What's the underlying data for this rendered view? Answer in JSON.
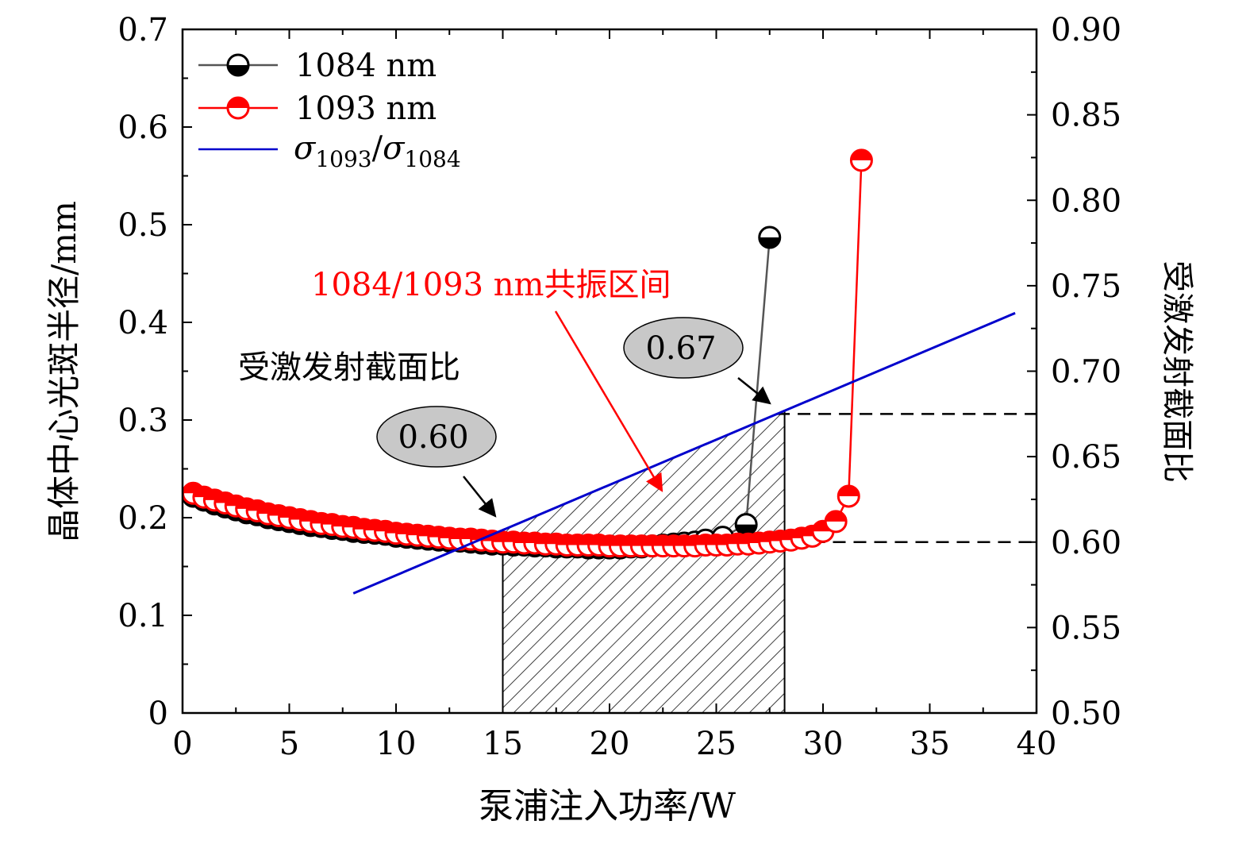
{
  "chart_data": {
    "type": "line",
    "xlabel": "泵浦注入功率/W",
    "ylabel_left": "晶体中心光斑半径/mm",
    "ylabel_right": "受激发射截面比",
    "xlim": [
      0,
      40
    ],
    "ylim_left": [
      0,
      0.7
    ],
    "ylim_right": [
      0.5,
      0.9
    ],
    "x_ticks": [
      "0",
      "5",
      "10",
      "15",
      "20",
      "25",
      "30",
      "35",
      "40"
    ],
    "y_left_ticks": [
      "0",
      "0.1",
      "0.2",
      "0.3",
      "0.4",
      "0.5",
      "0.6",
      "0.7"
    ],
    "y_right_ticks": [
      "0.50",
      "0.55",
      "0.60",
      "0.65",
      "0.70",
      "0.75",
      "0.80",
      "0.85",
      "0.90"
    ],
    "legend": {
      "entries": [
        {
          "label": "1084 nm"
        },
        {
          "label": "1093 nm"
        },
        {
          "sigma": "σ",
          "sub1": "1093",
          "slash": "/",
          "sub2": "1084"
        }
      ]
    },
    "series": [
      {
        "name": "1084 nm",
        "axis": "left",
        "color": "#000000",
        "line_color": "#555555",
        "x": [
          0.5,
          1.0,
          1.5,
          2.0,
          2.5,
          3.0,
          3.5,
          4.0,
          4.5,
          5.0,
          5.5,
          6.0,
          6.5,
          7.0,
          7.5,
          8.0,
          8.5,
          9.0,
          9.5,
          10.0,
          10.5,
          11.0,
          11.5,
          12.0,
          12.5,
          13.0,
          13.5,
          14.0,
          14.5,
          15.0,
          15.5,
          16.0,
          16.5,
          17.0,
          17.5,
          18.0,
          18.5,
          19.0,
          19.5,
          20.0,
          20.5,
          21.0,
          21.5,
          22.0,
          22.5,
          23.0,
          23.5,
          24.0,
          24.5,
          25.3,
          26.4,
          27.5
        ],
        "y": [
          0.222,
          0.218,
          0.214,
          0.211,
          0.208,
          0.205,
          0.203,
          0.2,
          0.198,
          0.196,
          0.194,
          0.192,
          0.191,
          0.189,
          0.188,
          0.186,
          0.185,
          0.184,
          0.183,
          0.181,
          0.18,
          0.179,
          0.178,
          0.177,
          0.176,
          0.176,
          0.175,
          0.174,
          0.173,
          0.173,
          0.172,
          0.172,
          0.171,
          0.171,
          0.17,
          0.17,
          0.17,
          0.169,
          0.169,
          0.169,
          0.169,
          0.17,
          0.17,
          0.171,
          0.172,
          0.173,
          0.174,
          0.175,
          0.177,
          0.18,
          0.193,
          0.487
        ]
      },
      {
        "name": "1093 nm",
        "axis": "left",
        "color": "#ff0000",
        "line_color": "#ff0000",
        "x": [
          0.5,
          1.0,
          1.5,
          2.0,
          2.5,
          3.0,
          3.5,
          4.0,
          4.5,
          5.0,
          5.5,
          6.0,
          6.5,
          7.0,
          7.5,
          8.0,
          8.5,
          9.0,
          9.5,
          10.0,
          10.5,
          11.0,
          11.5,
          12.0,
          12.5,
          13.0,
          13.5,
          14.0,
          14.5,
          15.0,
          15.5,
          16.0,
          16.5,
          17.0,
          17.5,
          18.0,
          18.5,
          19.0,
          19.5,
          20.0,
          20.5,
          21.0,
          21.5,
          22.0,
          22.5,
          23.0,
          23.5,
          24.0,
          24.5,
          25.0,
          25.5,
          26.0,
          26.5,
          27.0,
          27.5,
          28.0,
          28.5,
          29.0,
          29.5,
          30.0,
          30.6,
          31.2,
          31.8
        ],
        "y": [
          0.225,
          0.221,
          0.218,
          0.215,
          0.212,
          0.209,
          0.207,
          0.204,
          0.202,
          0.2,
          0.198,
          0.196,
          0.194,
          0.193,
          0.191,
          0.19,
          0.188,
          0.187,
          0.186,
          0.184,
          0.183,
          0.182,
          0.181,
          0.18,
          0.179,
          0.178,
          0.178,
          0.177,
          0.176,
          0.175,
          0.175,
          0.174,
          0.174,
          0.173,
          0.173,
          0.172,
          0.172,
          0.172,
          0.172,
          0.171,
          0.171,
          0.171,
          0.171,
          0.171,
          0.171,
          0.171,
          0.171,
          0.171,
          0.172,
          0.172,
          0.172,
          0.173,
          0.173,
          0.174,
          0.175,
          0.176,
          0.177,
          0.179,
          0.181,
          0.186,
          0.196,
          0.222,
          0.566
        ]
      },
      {
        "name": "σ1093/σ1084",
        "axis": "right",
        "color": "#0000cc",
        "x": [
          8.0,
          39.0
        ],
        "y": [
          0.57,
          0.734
        ]
      }
    ],
    "hatched_region": {
      "x_range": [
        15,
        28.2
      ],
      "label": "1084/1093 nm共振区间"
    },
    "reference_lines_right_axis": [
      0.6,
      0.675
    ],
    "annotations": {
      "resonance_label": "1084/1093 nm共振区间",
      "ratio_label": "受激发射截面比",
      "bubble_low": "0.60",
      "bubble_high": "0.67"
    }
  }
}
